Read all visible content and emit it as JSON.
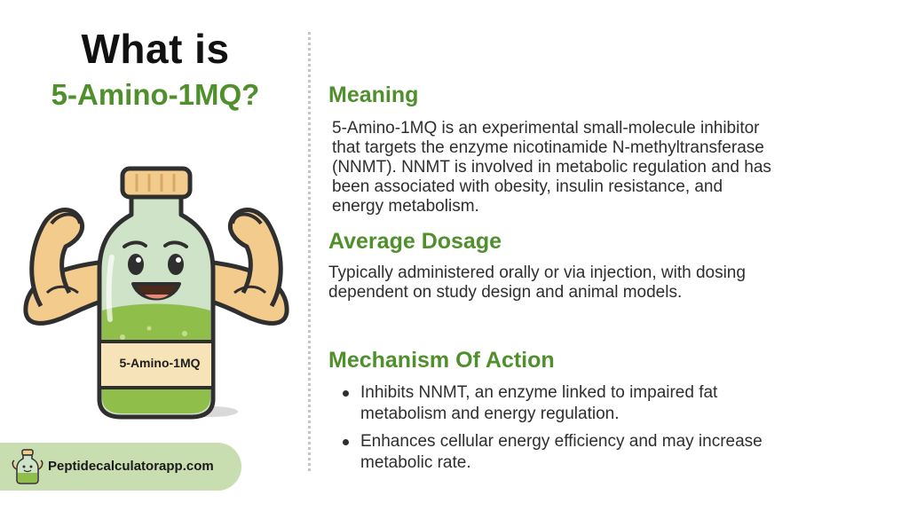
{
  "title": {
    "line1": "What is",
    "line2": "5-Amino-1MQ?"
  },
  "mascot": {
    "label": "5-Amino-1MQ",
    "icon": "flexing-bottle-mascot"
  },
  "sections": {
    "meaning": {
      "heading": "Meaning",
      "lines": [
        "5-Amino-1MQ is an experimental small-molecule inhibitor",
        "that targets the enzyme nicotinamide N-methyltransferase",
        "(NNMT). NNMT is involved in metabolic regulation and has",
        "been associated with obesity, insulin resistance, and",
        "energy metabolism."
      ]
    },
    "dosage": {
      "heading": "Average Dosage",
      "lines": [
        "Typically administered orally or via injection, with dosing",
        "dependent on study design and animal models."
      ]
    },
    "mechanism": {
      "heading": "Mechanism Of Action",
      "bullets": [
        [
          "Inhibits NNMT, an enzyme linked to impaired fat",
          "metabolism and energy regulation."
        ],
        [
          "Enhances cellular energy efficiency and may increase",
          "metabolic rate."
        ]
      ]
    }
  },
  "footer": {
    "site": "Peptidecalculatorapp.com",
    "icon": "peptide-calculator-logo"
  },
  "colors": {
    "accent_green": "#4f8f2c",
    "badge_green": "#c8ddb0"
  }
}
